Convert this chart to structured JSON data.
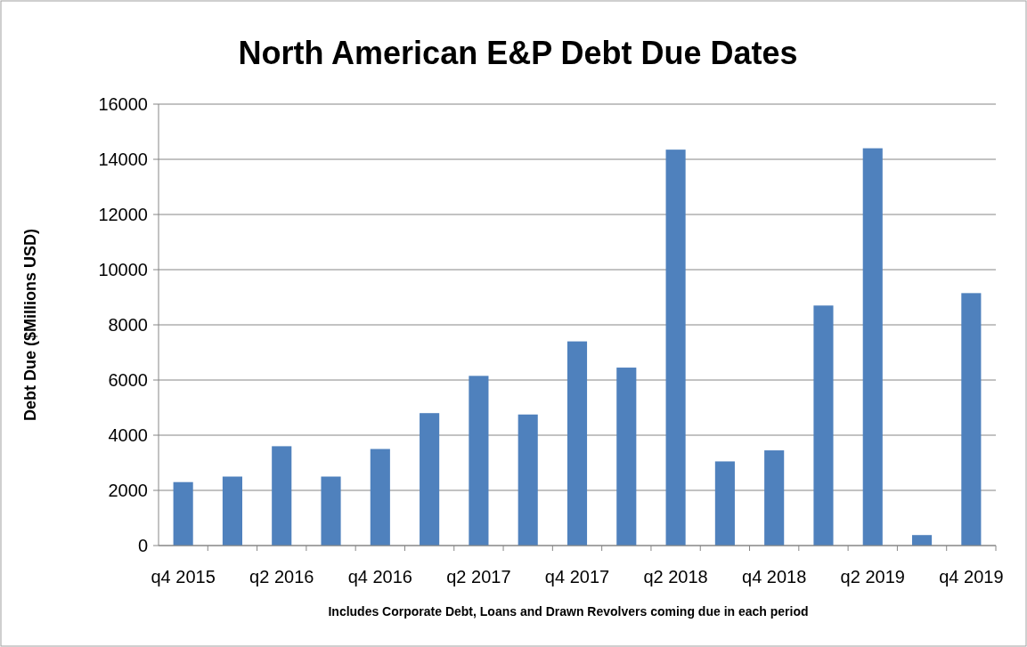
{
  "chart_data": {
    "type": "bar",
    "title": "North American E&P Debt Due Dates",
    "ylabel": "Debt Due ($Millions USD)",
    "xlabel": "Includes Corporate Debt, Loans and Drawn Revolvers coming due in each period",
    "categories": [
      "q4 2015",
      null,
      "q2 2016",
      null,
      "q4 2016",
      null,
      "q2 2017",
      null,
      "q4 2017",
      null,
      "q2 2018",
      null,
      "q4 2018",
      null,
      "q2 2019",
      null,
      "q4 2019"
    ],
    "values": [
      2300,
      2500,
      3600,
      2500,
      3500,
      4800,
      6150,
      4750,
      7400,
      6450,
      14350,
      3050,
      3450,
      8700,
      14400,
      380,
      9150
    ],
    "color": "#4f81bd",
    "ylim": [
      0,
      16000
    ],
    "yticks": [
      0,
      2000,
      4000,
      6000,
      8000,
      10000,
      12000,
      14000,
      16000
    ],
    "grid": "y"
  }
}
